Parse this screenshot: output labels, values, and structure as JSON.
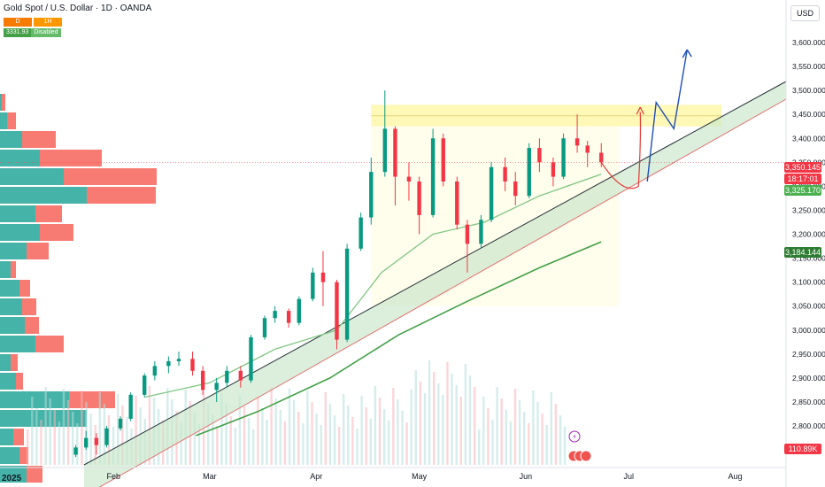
{
  "header": {
    "title": "Gold Spot / U.S. Dollar · 1D · OANDA",
    "sell_label": "D",
    "buy_label": "1H",
    "indicator_value": "3331.93",
    "indicator_status": "Disabled"
  },
  "currency": "USD",
  "price_badges": {
    "current_price": "3,350.145",
    "countdown": "18:17:01",
    "ma_fast_value": "3,325.170",
    "ma_slow_value": "3,184.144",
    "volume_value": "110.89K"
  },
  "colors": {
    "up": "#089981",
    "down": "#f23645",
    "ma_fast": "#81c784",
    "ma_slow": "#43a047",
    "resistance_zone": "#fff59d",
    "channel": "#c8e6c9",
    "projection_up": "#1e4fb4",
    "projection_curve": "#e53935"
  },
  "chart_data": {
    "type": "candlestick",
    "symbol": "XAUUSD",
    "interval": "1D",
    "ylim": [
      2800,
      3650
    ],
    "y_ticks": [
      3600,
      3550,
      3500,
      3450,
      3400,
      3350,
      3300,
      3250,
      3200,
      3150,
      3100,
      3050,
      3000,
      2950,
      2900,
      2850,
      2800
    ],
    "x_ticks": [
      "2025",
      "Feb",
      "Mar",
      "Apr",
      "May",
      "Jun",
      "Jul",
      "Aug"
    ],
    "current_price": 3350.145,
    "ma_fast_last": 3325.17,
    "ma_slow_last": 3184.144,
    "resistance_zone": [
      3425,
      3470
    ],
    "candles": [
      {
        "d": "2025-01-21",
        "o": 2740,
        "h": 2760,
        "c": 2755,
        "l": 2735
      },
      {
        "d": "2025-01-24",
        "o": 2755,
        "h": 2790,
        "c": 2775,
        "l": 2750
      },
      {
        "d": "2025-01-27",
        "o": 2775,
        "h": 2785,
        "c": 2760,
        "l": 2740
      },
      {
        "d": "2025-01-30",
        "o": 2760,
        "h": 2800,
        "c": 2795,
        "l": 2755
      },
      {
        "d": "2025-02-03",
        "o": 2795,
        "h": 2820,
        "c": 2815,
        "l": 2790
      },
      {
        "d": "2025-02-06",
        "o": 2815,
        "h": 2870,
        "c": 2865,
        "l": 2810
      },
      {
        "d": "2025-02-10",
        "o": 2865,
        "h": 2910,
        "c": 2905,
        "l": 2860
      },
      {
        "d": "2025-02-13",
        "o": 2905,
        "h": 2935,
        "c": 2925,
        "l": 2895
      },
      {
        "d": "2025-02-17",
        "o": 2925,
        "h": 2945,
        "c": 2935,
        "l": 2910
      },
      {
        "d": "2025-02-20",
        "o": 2935,
        "h": 2955,
        "c": 2940,
        "l": 2925
      },
      {
        "d": "2025-02-24",
        "o": 2940,
        "h": 2955,
        "c": 2915,
        "l": 2905
      },
      {
        "d": "2025-02-27",
        "o": 2915,
        "h": 2925,
        "c": 2875,
        "l": 2865
      },
      {
        "d": "2025-03-03",
        "o": 2875,
        "h": 2900,
        "c": 2890,
        "l": 2850
      },
      {
        "d": "2025-03-06",
        "o": 2890,
        "h": 2925,
        "c": 2915,
        "l": 2880
      },
      {
        "d": "2025-03-10",
        "o": 2915,
        "h": 2925,
        "c": 2895,
        "l": 2880
      },
      {
        "d": "2025-03-13",
        "o": 2895,
        "h": 2990,
        "c": 2985,
        "l": 2890
      },
      {
        "d": "2025-03-17",
        "o": 2985,
        "h": 3030,
        "c": 3025,
        "l": 2980
      },
      {
        "d": "2025-03-20",
        "o": 3025,
        "h": 3050,
        "c": 3040,
        "l": 3015
      },
      {
        "d": "2025-03-24",
        "o": 3040,
        "h": 3045,
        "c": 3015,
        "l": 3005
      },
      {
        "d": "2025-03-27",
        "o": 3015,
        "h": 3070,
        "c": 3065,
        "l": 3010
      },
      {
        "d": "2025-03-31",
        "o": 3065,
        "h": 3130,
        "c": 3120,
        "l": 3060
      },
      {
        "d": "2025-04-03",
        "o": 3120,
        "h": 3165,
        "c": 3100,
        "l": 3050
      },
      {
        "d": "2025-04-07",
        "o": 3100,
        "h": 3105,
        "c": 2980,
        "l": 2960
      },
      {
        "d": "2025-04-10",
        "o": 2980,
        "h": 3180,
        "c": 3170,
        "l": 2975
      },
      {
        "d": "2025-04-14",
        "o": 3170,
        "h": 3245,
        "c": 3235,
        "l": 3165
      },
      {
        "d": "2025-04-17",
        "o": 3235,
        "h": 3360,
        "c": 3330,
        "l": 3220
      },
      {
        "d": "2025-04-21",
        "o": 3330,
        "h": 3500,
        "c": 3420,
        "l": 3320
      },
      {
        "d": "2025-04-24",
        "o": 3420,
        "h": 3425,
        "c": 3320,
        "l": 3260
      },
      {
        "d": "2025-04-28",
        "o": 3320,
        "h": 3350,
        "c": 3310,
        "l": 3270
      },
      {
        "d": "2025-05-01",
        "o": 3310,
        "h": 3320,
        "c": 3240,
        "l": 3200
      },
      {
        "d": "2025-05-05",
        "o": 3240,
        "h": 3420,
        "c": 3400,
        "l": 3235
      },
      {
        "d": "2025-05-08",
        "o": 3400,
        "h": 3410,
        "c": 3310,
        "l": 3300
      },
      {
        "d": "2025-05-12",
        "o": 3310,
        "h": 3320,
        "c": 3220,
        "l": 3210
      },
      {
        "d": "2025-05-15",
        "o": 3220,
        "h": 3230,
        "c": 3180,
        "l": 3120
      },
      {
        "d": "2025-05-19",
        "o": 3180,
        "h": 3240,
        "c": 3230,
        "l": 3170
      },
      {
        "d": "2025-05-22",
        "o": 3230,
        "h": 3350,
        "c": 3340,
        "l": 3225
      },
      {
        "d": "2025-05-26",
        "o": 3340,
        "h": 3360,
        "c": 3310,
        "l": 3290
      },
      {
        "d": "2025-05-29",
        "o": 3310,
        "h": 3330,
        "c": 3280,
        "l": 3260
      },
      {
        "d": "2025-06-02",
        "o": 3280,
        "h": 3390,
        "c": 3380,
        "l": 3275
      },
      {
        "d": "2025-06-05",
        "o": 3380,
        "h": 3400,
        "c": 3350,
        "l": 3330
      },
      {
        "d": "2025-06-09",
        "o": 3350,
        "h": 3360,
        "c": 3320,
        "l": 3300
      },
      {
        "d": "2025-06-12",
        "o": 3320,
        "h": 3410,
        "c": 3400,
        "l": 3315
      },
      {
        "d": "2025-06-16",
        "o": 3400,
        "h": 3450,
        "c": 3385,
        "l": 3370
      },
      {
        "d": "2025-06-19",
        "o": 3385,
        "h": 3395,
        "c": 3370,
        "l": 3340
      },
      {
        "d": "2025-06-23",
        "o": 3370,
        "h": 3390,
        "c": 3350,
        "l": 3340
      }
    ]
  }
}
